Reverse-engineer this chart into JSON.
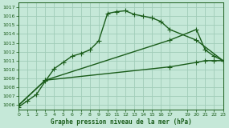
{
  "title": "Graphe pression niveau de la mer (hPa)",
  "bg_color": "#c5e8d8",
  "grid_color": "#a0ccb8",
  "line_color": "#1a5c1a",
  "xlim": [
    0,
    23
  ],
  "ylim": [
    1005.5,
    1017.5
  ],
  "yticks": [
    1006,
    1007,
    1008,
    1009,
    1010,
    1011,
    1012,
    1013,
    1014,
    1015,
    1016,
    1017
  ],
  "xtick_positions": [
    0,
    1,
    2,
    3,
    4,
    5,
    6,
    7,
    8,
    9,
    10,
    11,
    12,
    13,
    14,
    15,
    16,
    17,
    19,
    20,
    21,
    22,
    23
  ],
  "xtick_labels": [
    "0",
    "1",
    "2",
    "3",
    "4",
    "5",
    "6",
    "7",
    "8",
    "9",
    "10",
    "11",
    "12",
    "13",
    "14",
    "15",
    "16",
    "17",
    "19",
    "20",
    "21",
    "22",
    "23"
  ],
  "series": [
    {
      "x": [
        0,
        1,
        2,
        3,
        4,
        5,
        6,
        7,
        8,
        9,
        10,
        11,
        12,
        13,
        14,
        15,
        16,
        17,
        20,
        23
      ],
      "y": [
        1005.8,
        1006.5,
        1007.2,
        1008.7,
        1010.1,
        1010.8,
        1011.5,
        1011.8,
        1012.2,
        1013.2,
        1016.3,
        1016.5,
        1016.6,
        1016.2,
        1016.0,
        1015.8,
        1015.4,
        1014.5,
        1013.3,
        1011.0
      ],
      "marker": "+",
      "markersize": 4,
      "linewidth": 1.0,
      "zorder": 3
    },
    {
      "x": [
        0,
        3,
        17,
        20,
        21,
        22,
        23
      ],
      "y": [
        1006.0,
        1008.8,
        1013.3,
        1014.5,
        1012.2,
        1011.5,
        1011.0
      ],
      "marker": "+",
      "markersize": 4,
      "linewidth": 1.0,
      "zorder": 2
    },
    {
      "x": [
        0,
        3,
        17,
        20,
        21,
        22,
        23
      ],
      "y": [
        1006.0,
        1008.8,
        1010.3,
        1010.8,
        1011.0,
        1011.0,
        1011.0
      ],
      "marker": "+",
      "markersize": 4,
      "linewidth": 1.0,
      "zorder": 2
    }
  ]
}
